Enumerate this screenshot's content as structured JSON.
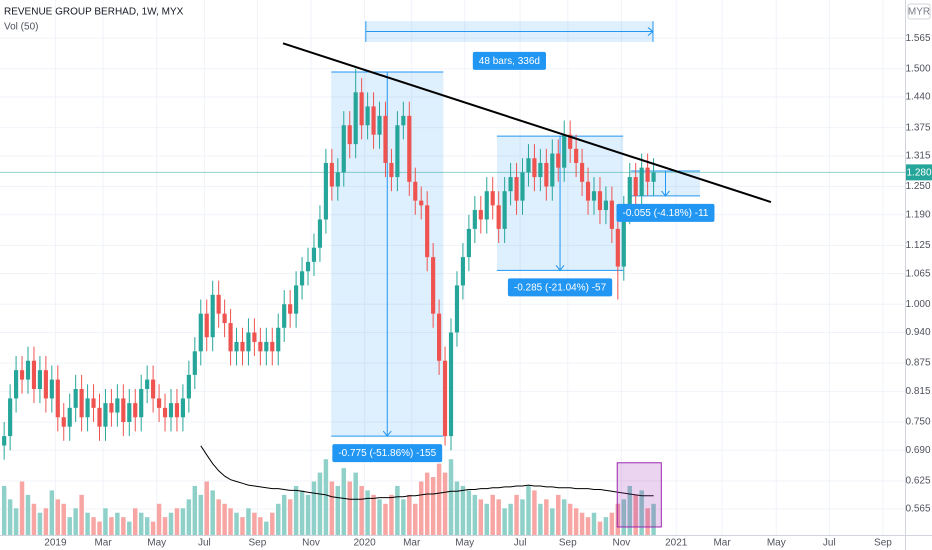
{
  "chart_data": {
    "type": "candlestick",
    "title": "REVENUE GROUP BERHAD, 1W, MYX",
    "indicator_label": "Vol (50)",
    "currency": "MYR",
    "up_color": "#26a69a",
    "down_color": "#ef5350",
    "volume_up_color": "#8fd1c9",
    "volume_down_color": "#f7a6a4",
    "ma_color": "#000000",
    "grid": true,
    "ylim": [
      0.51,
      1.646
    ],
    "yticks": [
      1.565,
      {
        "value": 1.5,
        "label": "1.500"
      },
      {
        "value": 1.44,
        "label": "1.440"
      },
      1.375,
      1.315,
      {
        "value": 1.25,
        "label": "1.250"
      },
      {
        "value": 1.19,
        "label": "1.190"
      },
      1.125,
      1.065,
      {
        "value": 1.0,
        "label": "1.000"
      },
      {
        "value": 0.94,
        "label": "0.940"
      },
      0.875,
      0.815,
      {
        "value": 0.75,
        "label": "0.750"
      },
      {
        "value": 0.69,
        "label": "0.690"
      },
      0.625,
      0.565
    ],
    "xlim": [
      -0.7,
      151.2
    ],
    "xticks": [
      {
        "value": 8.6,
        "label": "2019"
      },
      {
        "value": 16.6,
        "label": "Mar"
      },
      {
        "value": 25.6,
        "label": "May"
      },
      {
        "value": 33.6,
        "label": "Jul"
      },
      {
        "value": 42.5,
        "label": "Sep"
      },
      {
        "value": 51.5,
        "label": "Nov"
      },
      {
        "value": 60.5,
        "label": "2020"
      },
      {
        "value": 68.4,
        "label": "Mar"
      },
      {
        "value": 77.3,
        "label": "May"
      },
      {
        "value": 86.6,
        "label": "Jul"
      },
      {
        "value": 94.6,
        "label": "Sep"
      },
      {
        "value": 103.6,
        "label": "Nov"
      },
      {
        "value": 112.8,
        "label": "2021"
      },
      {
        "value": 120.5,
        "label": "Mar"
      },
      {
        "value": 129.6,
        "label": "May"
      },
      {
        "value": 138.5,
        "label": "Jul"
      },
      {
        "value": 147.5,
        "label": "Sep"
      }
    ],
    "vlim": [
      0,
      600
    ],
    "open": [
      0.7,
      0.72,
      0.8,
      0.86,
      0.84,
      0.88,
      0.82,
      0.86,
      0.8,
      0.84,
      0.76,
      0.74,
      0.78,
      0.82,
      0.76,
      0.8,
      0.78,
      0.74,
      0.79,
      0.77,
      0.8,
      0.75,
      0.79,
      0.76,
      0.82,
      0.84,
      0.8,
      0.78,
      0.76,
      0.79,
      0.76,
      0.8,
      0.85,
      0.9,
      0.98,
      0.93,
      1.02,
      0.98,
      0.96,
      0.9,
      0.92,
      0.9,
      0.94,
      0.92,
      0.9,
      0.92,
      0.9,
      0.95,
      1.0,
      0.98,
      1.04,
      1.07,
      1.09,
      1.12,
      1.18,
      1.3,
      1.25,
      1.28,
      1.38,
      1.34,
      1.45,
      1.38,
      1.42,
      1.36,
      1.4,
      1.3,
      1.27,
      1.38,
      1.4,
      1.26,
      1.22,
      1.21,
      1.1,
      0.98,
      0.88,
      0.72,
      0.94,
      1.04,
      1.1,
      1.16,
      1.2,
      1.18,
      1.24,
      1.21,
      1.16,
      1.24,
      1.27,
      1.22,
      1.28,
      1.31,
      1.27,
      1.3,
      1.25,
      1.32,
      1.29,
      1.36,
      1.33,
      1.3,
      1.26,
      1.22,
      1.24,
      1.2,
      1.22,
      1.16,
      1.08,
      1.2,
      1.27,
      1.23,
      1.29,
      1.26
    ],
    "high": [
      0.75,
      0.83,
      0.89,
      0.89,
      0.91,
      0.91,
      0.89,
      0.89,
      0.87,
      0.87,
      0.79,
      0.81,
      0.85,
      0.85,
      0.83,
      0.83,
      0.81,
      0.82,
      0.82,
      0.83,
      0.83,
      0.82,
      0.82,
      0.85,
      0.87,
      0.87,
      0.83,
      0.81,
      0.82,
      0.82,
      0.83,
      0.88,
      0.93,
      1.01,
      1.01,
      1.05,
      1.05,
      1.01,
      0.99,
      0.95,
      0.95,
      0.97,
      0.97,
      0.95,
      0.95,
      0.95,
      0.98,
      1.03,
      1.03,
      1.07,
      1.1,
      1.12,
      1.15,
      1.21,
      1.33,
      1.33,
      1.31,
      1.41,
      1.41,
      1.5,
      1.48,
      1.45,
      1.45,
      1.43,
      1.43,
      1.33,
      1.41,
      1.43,
      1.43,
      1.29,
      1.25,
      1.24,
      1.13,
      1.01,
      0.91,
      0.97,
      1.07,
      1.13,
      1.19,
      1.23,
      1.23,
      1.27,
      1.27,
      1.24,
      1.27,
      1.3,
      1.3,
      1.31,
      1.34,
      1.34,
      1.33,
      1.33,
      1.35,
      1.35,
      1.39,
      1.39,
      1.36,
      1.33,
      1.29,
      1.27,
      1.27,
      1.25,
      1.25,
      1.19,
      1.23,
      1.3,
      1.3,
      1.32,
      1.32,
      1.31
    ],
    "low": [
      0.67,
      0.69,
      0.77,
      0.81,
      0.81,
      0.79,
      0.79,
      0.77,
      0.77,
      0.73,
      0.71,
      0.71,
      0.75,
      0.73,
      0.73,
      0.75,
      0.71,
      0.71,
      0.74,
      0.74,
      0.72,
      0.72,
      0.73,
      0.73,
      0.79,
      0.77,
      0.75,
      0.73,
      0.73,
      0.73,
      0.73,
      0.77,
      0.82,
      0.87,
      0.9,
      0.9,
      0.95,
      0.93,
      0.87,
      0.87,
      0.87,
      0.87,
      0.89,
      0.87,
      0.87,
      0.87,
      0.87,
      0.92,
      0.95,
      0.95,
      1.01,
      1.04,
      1.06,
      1.09,
      1.15,
      1.22,
      1.22,
      1.25,
      1.31,
      1.31,
      1.35,
      1.35,
      1.33,
      1.33,
      1.27,
      1.24,
      1.24,
      1.35,
      1.23,
      1.19,
      1.18,
      1.07,
      0.95,
      0.85,
      0.7,
      0.69,
      0.91,
      1.01,
      1.07,
      1.13,
      1.15,
      1.15,
      1.18,
      1.13,
      1.13,
      1.21,
      1.19,
      1.19,
      1.25,
      1.24,
      1.24,
      1.22,
      1.22,
      1.26,
      1.26,
      1.3,
      1.27,
      1.23,
      1.19,
      1.19,
      1.17,
      1.17,
      1.13,
      1.01,
      1.05,
      1.17,
      1.2,
      1.2,
      1.23,
      1.23
    ],
    "close": [
      0.72,
      0.8,
      0.86,
      0.84,
      0.88,
      0.82,
      0.86,
      0.8,
      0.84,
      0.76,
      0.74,
      0.78,
      0.82,
      0.76,
      0.8,
      0.78,
      0.74,
      0.79,
      0.77,
      0.8,
      0.75,
      0.79,
      0.76,
      0.82,
      0.84,
      0.8,
      0.78,
      0.76,
      0.79,
      0.76,
      0.8,
      0.85,
      0.9,
      0.98,
      0.93,
      1.02,
      0.98,
      0.96,
      0.9,
      0.92,
      0.9,
      0.94,
      0.92,
      0.9,
      0.92,
      0.9,
      0.95,
      1.0,
      0.98,
      1.04,
      1.07,
      1.09,
      1.12,
      1.18,
      1.3,
      1.25,
      1.28,
      1.38,
      1.34,
      1.45,
      1.38,
      1.42,
      1.36,
      1.4,
      1.3,
      1.27,
      1.38,
      1.4,
      1.26,
      1.22,
      1.21,
      1.1,
      0.98,
      0.88,
      0.72,
      0.94,
      1.04,
      1.1,
      1.16,
      1.2,
      1.18,
      1.24,
      1.21,
      1.16,
      1.24,
      1.27,
      1.22,
      1.28,
      1.31,
      1.27,
      1.3,
      1.25,
      1.32,
      1.29,
      1.36,
      1.33,
      1.3,
      1.26,
      1.22,
      1.24,
      1.2,
      1.22,
      1.16,
      1.08,
      1.2,
      1.27,
      1.23,
      1.29,
      1.26,
      1.28
    ],
    "volume": [
      55,
      40,
      30,
      60,
      45,
      35,
      25,
      30,
      50,
      40,
      35,
      20,
      30,
      45,
      25,
      20,
      15,
      30,
      20,
      25,
      20,
      15,
      30,
      25,
      20,
      15,
      35,
      20,
      25,
      30,
      30,
      40,
      55,
      45,
      60,
      50,
      40,
      35,
      30,
      25,
      20,
      30,
      25,
      20,
      15,
      25,
      35,
      45,
      40,
      55,
      50,
      45,
      60,
      70,
      85,
      60,
      55,
      75,
      60,
      70,
      55,
      50,
      45,
      40,
      35,
      45,
      55,
      40,
      45,
      35,
      60,
      70,
      65,
      80,
      70,
      85,
      60,
      55,
      50,
      45,
      40,
      35,
      45,
      40,
      30,
      35,
      45,
      40,
      55,
      50,
      35,
      40,
      30,
      45,
      40,
      35,
      30,
      25,
      20,
      25,
      15,
      20,
      25,
      35,
      40,
      55,
      45,
      50,
      30,
      35
    ],
    "volume_ma": [
      null,
      null,
      null,
      null,
      null,
      null,
      null,
      null,
      null,
      null,
      null,
      null,
      null,
      null,
      null,
      null,
      null,
      null,
      null,
      null,
      null,
      null,
      null,
      null,
      null,
      null,
      null,
      null,
      null,
      null,
      null,
      null,
      null,
      100,
      90,
      80,
      72,
      66,
      62,
      60,
      58,
      56,
      55,
      54,
      53,
      52,
      52,
      51,
      50,
      50,
      49,
      48,
      47,
      46,
      45,
      43,
      42,
      41,
      40,
      40,
      40,
      41,
      41,
      42,
      42,
      42,
      43,
      43,
      44,
      44,
      45,
      46,
      46,
      47,
      48,
      49,
      49,
      50,
      51,
      51,
      52,
      52,
      53,
      53,
      54,
      54,
      55,
      55,
      56,
      55,
      55,
      54,
      54,
      53,
      53,
      53,
      52,
      52,
      52,
      51,
      51,
      50,
      49,
      48,
      47,
      46,
      45,
      44,
      44,
      44
    ],
    "last_price": {
      "value": 1.28,
      "label": "1.280"
    },
    "trendline": {
      "x": [
        46.8,
        128.7
      ],
      "y": [
        1.554,
        1.217
      ]
    },
    "date_range": {
      "label": "48 bars, 336d",
      "x": [
        60.7,
        108.9
      ],
      "y": [
        1.557,
        1.601
      ]
    },
    "measures": [
      {
        "label": "-0.775 (-51.86%) -155",
        "x": [
          54.9,
          73.7
        ],
        "y": [
          1.493,
          0.72
        ]
      },
      {
        "label": "-0.285 (-21.04%) -57",
        "x": [
          82.7,
          103.9
        ],
        "y": [
          1.357,
          1.072
        ]
      },
      {
        "label": "-0.055 (-4.18%) -11",
        "x": [
          105.2,
          116.8
        ],
        "y": [
          1.283,
          1.23
        ]
      }
    ],
    "volume_box": {
      "x": [
        102.9,
        110.3
      ],
      "v": [
        9,
        81
      ]
    }
  }
}
